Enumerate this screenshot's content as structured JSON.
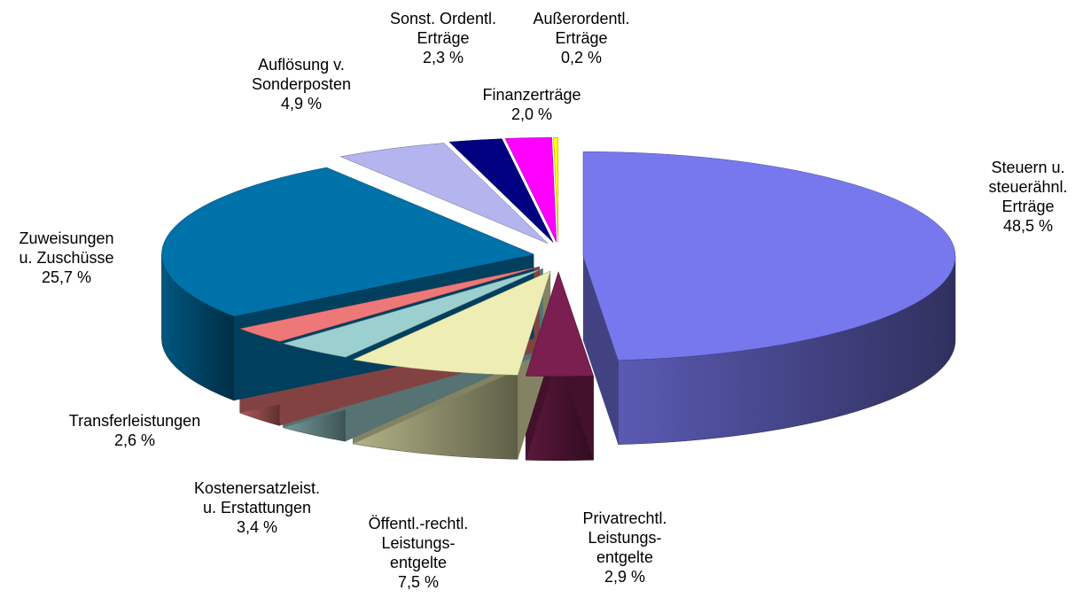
{
  "chart_data": {
    "type": "pie",
    "categories": [
      "Steuern u.\nsteuerähnl.\nErträge",
      "Privatrechtl.\nLeistungs-\nentgelte",
      "Öffentl.-rechtl.\nLeistungs-\nentgelte",
      "Kostenersatzleist.\nu. Erstattungen",
      "Transferleistungen",
      "Zuweisungen\nu. Zuschüsse",
      "Auflösung v.\nSonderposten",
      "Sonst. Ordentl.\nErträge",
      "Finanzerträge",
      "Außerordentl.\nErträge"
    ],
    "values": [
      48.5,
      2.9,
      7.5,
      3.4,
      2.6,
      25.7,
      4.9,
      2.3,
      2.0,
      0.2
    ],
    "value_labels": [
      "48,5 %",
      "2,9 %",
      "7,5 %",
      "3,4 %",
      "2,6 %",
      "25,7 %",
      "4,9 %",
      "2,3 %",
      "2,0 %",
      "0,2 %"
    ],
    "colors": [
      "#7878ee",
      "#7a1f4f",
      "#eeeeb4",
      "#9ccfcf",
      "#ee7878",
      "#0072aa",
      "#b4b4ee",
      "#000080",
      "#ff00ff",
      "#ffff00"
    ]
  }
}
